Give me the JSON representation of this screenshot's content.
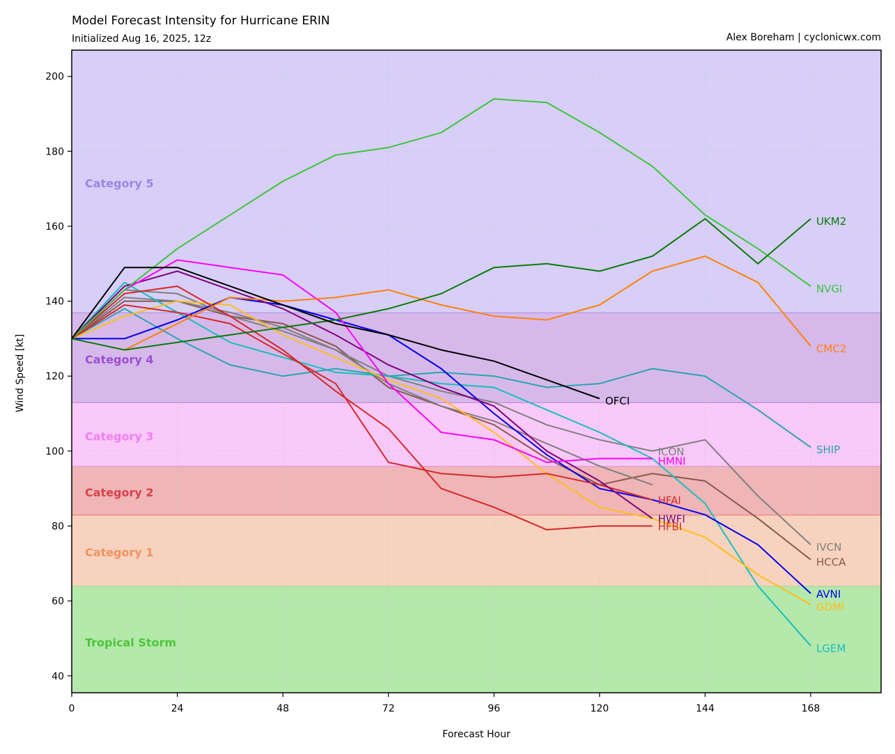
{
  "header": {
    "title": "Model Forecast Intensity for Hurricane ERIN",
    "subtitle": "Initialized Aug 16, 2025, 12z",
    "credit": "Alex Boreham | cyclonicwx.com"
  },
  "chart_data": {
    "type": "line",
    "xlabel": "Forecast Hour",
    "ylabel": "Wind Speed [kt]",
    "xlim": [
      0,
      184
    ],
    "ylim": [
      35.5,
      207
    ],
    "xticks": [
      0,
      24,
      48,
      72,
      96,
      120,
      144,
      168
    ],
    "yticks": [
      40,
      60,
      80,
      100,
      120,
      140,
      160,
      180,
      200
    ],
    "grid": true,
    "bands": [
      {
        "label": "Tropical Storm",
        "min": 35.5,
        "max": 64,
        "fill": "#b5e8ab",
        "edge": "#9ed48f",
        "text": "#4cc53a",
        "label_y": 49
      },
      {
        "label": "Category 1",
        "min": 64,
        "max": 83,
        "fill": "#f7d3bf",
        "edge": "#e8796f",
        "text": "#f0915f",
        "label_y": 73
      },
      {
        "label": "Category 2",
        "min": 83,
        "max": 96,
        "fill": "#efb5b7",
        "edge": "#d98fd3",
        "text": "#d9414a",
        "label_y": 89
      },
      {
        "label": "Category 3",
        "min": 96,
        "max": 113,
        "fill": "#f9c9f9",
        "edge": "#c07bd9",
        "text": "#f07ff0",
        "label_y": 104
      },
      {
        "label": "Category 4",
        "min": 113,
        "max": 137,
        "fill": "#d6b9ea",
        "edge": "#a98ae6",
        "text": "#9a4fd1",
        "label_y": 124.5
      },
      {
        "label": "Category 5",
        "min": 137,
        "max": 207,
        "fill": "#d7cff7",
        "edge": "#a98ae6",
        "text": "#9a85e8",
        "label_y": 171.5
      }
    ],
    "series": [
      {
        "name": "HCCA",
        "color": "#8c564b",
        "label_y": 70.5,
        "x": [
          0,
          12,
          24,
          36,
          48,
          60,
          72,
          84,
          96,
          108,
          120,
          132,
          144,
          156,
          168
        ],
        "y": [
          130,
          140,
          140,
          136,
          134,
          128,
          117,
          112,
          107,
          98,
          91,
          94,
          92,
          82,
          71
        ]
      },
      {
        "name": "ICON",
        "color": "#7f7f7f",
        "label_y": 100,
        "x": [
          0,
          12,
          24,
          36,
          48,
          60,
          72,
          84,
          96,
          108,
          120,
          132
        ],
        "y": [
          130,
          141,
          140,
          137,
          133,
          127,
          118,
          112,
          108,
          102,
          96,
          91
        ]
      },
      {
        "name": "IVCN",
        "color": "#7f7f7f",
        "label_y": 74.5,
        "x": [
          0,
          12,
          24,
          36,
          48,
          60,
          72,
          84,
          96,
          108,
          120,
          132,
          144,
          156,
          168
        ],
        "y": [
          130,
          143,
          142,
          136,
          132,
          127,
          120,
          116,
          113,
          107,
          103,
          100,
          103,
          88,
          75
        ]
      },
      {
        "name": "LGEM",
        "color": "#17bebb",
        "label_y": 47.5,
        "x": [
          0,
          12,
          24,
          36,
          48,
          60,
          72,
          84,
          96,
          108,
          120,
          132,
          144,
          156,
          168
        ],
        "y": [
          130,
          145,
          137,
          129,
          125,
          121,
          120,
          118,
          117,
          111,
          105,
          98,
          86,
          64,
          48
        ]
      },
      {
        "name": "SHIP",
        "color": "#2ca3b0",
        "label_y": 100.5,
        "x": [
          0,
          12,
          24,
          36,
          48,
          60,
          72,
          84,
          96,
          108,
          120,
          132,
          144,
          156,
          168
        ],
        "y": [
          130,
          138,
          130,
          123,
          120,
          122,
          120,
          121,
          120,
          117,
          118,
          122,
          120,
          111,
          101
        ]
      },
      {
        "name": "GDMI",
        "color": "#ffbe1a",
        "label_y": 58.5,
        "x": [
          0,
          12,
          24,
          36,
          48,
          60,
          72,
          84,
          96,
          108,
          120,
          132,
          144,
          156,
          168
        ],
        "y": [
          130,
          136,
          140,
          139,
          131,
          125,
          119,
          114,
          105,
          94,
          85,
          82,
          77,
          67,
          59
        ]
      },
      {
        "name": "AVNI",
        "color": "#0000ee",
        "label_y": 62,
        "x": [
          0,
          12,
          24,
          36,
          48,
          60,
          72,
          84,
          96,
          108,
          120,
          132,
          144,
          156,
          168
        ],
        "y": [
          130,
          130,
          135,
          141,
          139,
          135,
          131,
          122,
          110,
          99,
          90,
          87,
          83,
          75,
          62
        ]
      },
      {
        "name": "HFAI",
        "color": "#d62728",
        "label_y": 87,
        "x": [
          0,
          12,
          24,
          36,
          48,
          60,
          72,
          84,
          96,
          108,
          120,
          132
        ],
        "y": [
          130,
          139,
          137,
          134,
          126,
          118,
          97,
          94,
          93,
          94,
          91,
          87
        ]
      },
      {
        "name": "HFBI",
        "color": "#d62728",
        "label_y": 80,
        "x": [
          0,
          12,
          24,
          36,
          48,
          60,
          72,
          84,
          96,
          108,
          120,
          132
        ],
        "y": [
          130,
          142,
          144,
          136,
          127,
          116,
          106,
          90,
          85,
          79,
          80,
          80
        ]
      },
      {
        "name": "HWFI",
        "color": "#800080",
        "label_y": 82,
        "x": [
          0,
          12,
          24,
          36,
          48,
          60,
          72,
          84,
          96,
          108,
          120,
          132
        ],
        "y": [
          130,
          144,
          148,
          143,
          138,
          131,
          123,
          117,
          112,
          100,
          92,
          82
        ]
      },
      {
        "name": "HMNI",
        "color": "#ff00ff",
        "label_y": 97.5,
        "x": [
          0,
          12,
          24,
          36,
          48,
          60,
          72,
          84,
          96,
          108,
          120,
          132
        ],
        "y": [
          130,
          143,
          151,
          149,
          147,
          137,
          118,
          105,
          103,
          97,
          98,
          98
        ]
      },
      {
        "name": "CMC2",
        "color": "#ff7f0e",
        "label_y": 127.5,
        "x": [
          12,
          24,
          36,
          48,
          60,
          72,
          84,
          96,
          108,
          120,
          132,
          144,
          156,
          168
        ],
        "y": [
          127,
          134,
          141,
          140,
          141,
          143,
          139,
          136,
          135,
          139,
          148,
          152,
          145,
          128
        ]
      },
      {
        "name": "NVGI",
        "color": "#3cc43c",
        "label_y": 143.5,
        "x": [
          0,
          12,
          24,
          36,
          48,
          60,
          72,
          84,
          96,
          108,
          120,
          132,
          144,
          156,
          168
        ],
        "y": [
          130,
          143,
          154,
          163,
          172,
          179,
          181,
          185,
          194,
          193,
          185,
          176,
          163,
          154,
          144
        ]
      },
      {
        "name": "UKM2",
        "color": "#0a7a0a",
        "label_y": 161.5,
        "x": [
          0,
          12,
          24,
          36,
          48,
          60,
          72,
          84,
          96,
          108,
          120,
          132,
          144,
          156,
          168
        ],
        "y": [
          130,
          127,
          129,
          131,
          133,
          135,
          138,
          142,
          149,
          150,
          148,
          152,
          162,
          150,
          162
        ]
      },
      {
        "name": "OFCI",
        "color": "#000000",
        "label_y": 113.5,
        "x": [
          0,
          12,
          24,
          36,
          48,
          60,
          72,
          84,
          96,
          108,
          120
        ],
        "y": [
          130,
          149,
          149,
          144,
          139,
          134,
          131,
          127,
          124,
          119,
          114
        ]
      }
    ]
  }
}
